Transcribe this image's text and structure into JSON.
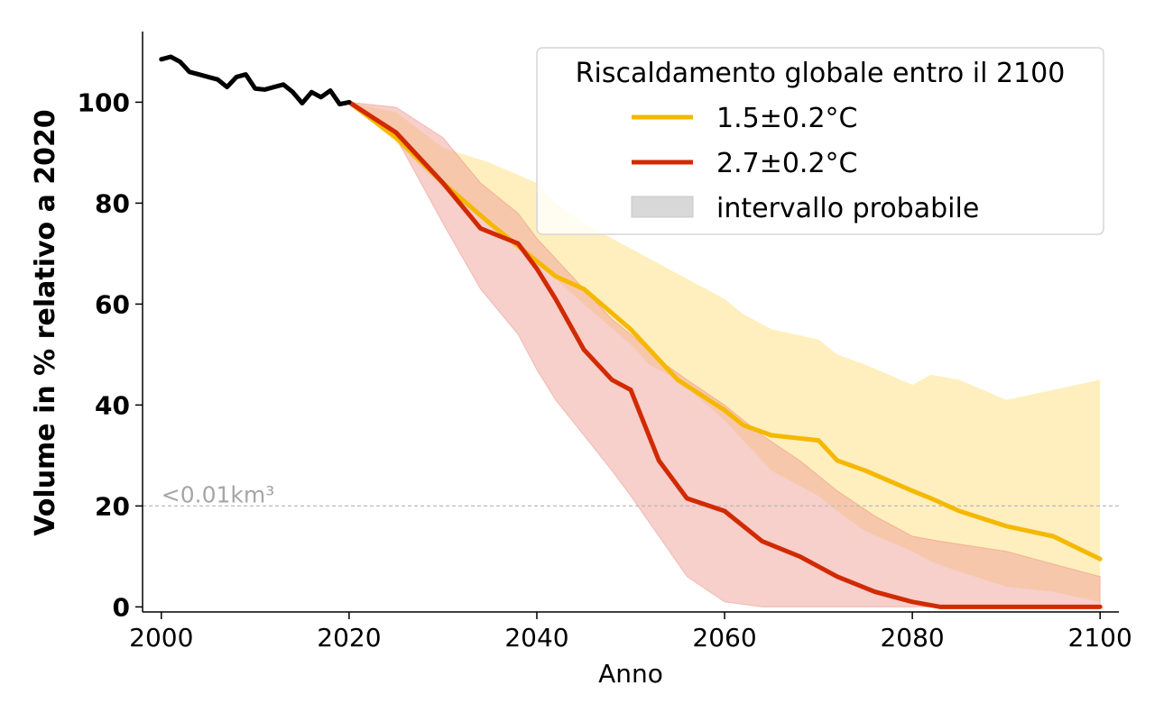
{
  "chart_data": {
    "type": "line",
    "title": "",
    "xlabel": "Anno",
    "ylabel": "Volume in % relativo a 2020",
    "xlim": [
      1998,
      2102
    ],
    "ylim": [
      -1,
      114
    ],
    "x_ticks": [
      2000,
      2020,
      2040,
      2060,
      2080,
      2100
    ],
    "y_ticks": [
      0,
      20,
      40,
      60,
      80,
      100
    ],
    "grid": false,
    "legend": {
      "title": "Riscaldamento globale entro il 2100",
      "placement": "top-right",
      "entries": [
        "1.5±0.2°C",
        "2.7±0.2°C",
        "intervallo probabile"
      ]
    },
    "annotation": {
      "text": "<0.01km³",
      "y": 20,
      "x": 2000
    },
    "colors": {
      "historical": "#000000",
      "low": "#f5b800",
      "high": "#d12a00",
      "low_band": "#ffe9a8",
      "high_band": "#f0a098",
      "legend_band": "#d8d8d8",
      "threshold": "#bbbbbb"
    },
    "historical": {
      "x": [
        2000,
        2001,
        2002,
        2003,
        2004,
        2005,
        2006,
        2007,
        2008,
        2009,
        2010,
        2011,
        2012,
        2013,
        2014,
        2015,
        2016,
        2017,
        2018,
        2019,
        2020
      ],
      "y": [
        108.5,
        109,
        108,
        106,
        105.5,
        105,
        104.5,
        103,
        105,
        105.5,
        102.7,
        102.5,
        103,
        103.5,
        102,
        99.8,
        102,
        101,
        102.3,
        99.6,
        100
      ]
    },
    "series": [
      {
        "name": "1.5±0.2°C",
        "x": [
          2020,
          2025,
          2030,
          2035,
          2040,
          2042,
          2045,
          2050,
          2052,
          2055,
          2060,
          2062,
          2065,
          2070,
          2072,
          2075,
          2080,
          2082,
          2085,
          2090,
          2095,
          2100
        ],
        "y": [
          100,
          93,
          84,
          76,
          68.5,
          65.5,
          63,
          55,
          51,
          45,
          39,
          36,
          34,
          33,
          29,
          27,
          23,
          21.5,
          19,
          16,
          14,
          9.5
        ],
        "band_upper": [
          100,
          98,
          91,
          88,
          84,
          80,
          76,
          71,
          69,
          66,
          61,
          58,
          55,
          53,
          50,
          48,
          44,
          46,
          45,
          41,
          43,
          45
        ],
        "band_lower": [
          100,
          92,
          83,
          76,
          69,
          65,
          60,
          52,
          48,
          45,
          37,
          33,
          27,
          22,
          19,
          15,
          11,
          9,
          7,
          4,
          3,
          1
        ]
      },
      {
        "name": "2.7±0.2°C",
        "x": [
          2020,
          2025,
          2030,
          2034,
          2038,
          2040,
          2042,
          2045,
          2048,
          2050,
          2053,
          2056,
          2060,
          2064,
          2068,
          2072,
          2076,
          2080,
          2083,
          2090,
          2100
        ],
        "y": [
          100,
          94,
          84,
          75,
          72,
          67,
          61,
          51,
          45,
          43,
          29,
          21.5,
          19,
          13,
          10,
          6,
          3,
          1,
          0,
          0,
          0
        ],
        "band_upper": [
          100,
          99,
          93,
          84,
          78,
          73,
          69,
          63,
          57,
          54,
          49,
          45,
          40,
          34,
          29,
          23,
          18,
          14,
          13,
          11,
          6
        ],
        "band_lower": [
          100,
          93,
          76,
          63,
          54,
          47,
          41,
          34,
          27,
          22,
          14,
          6,
          1,
          0,
          0,
          0,
          0,
          0,
          0,
          0,
          0
        ]
      }
    ]
  }
}
